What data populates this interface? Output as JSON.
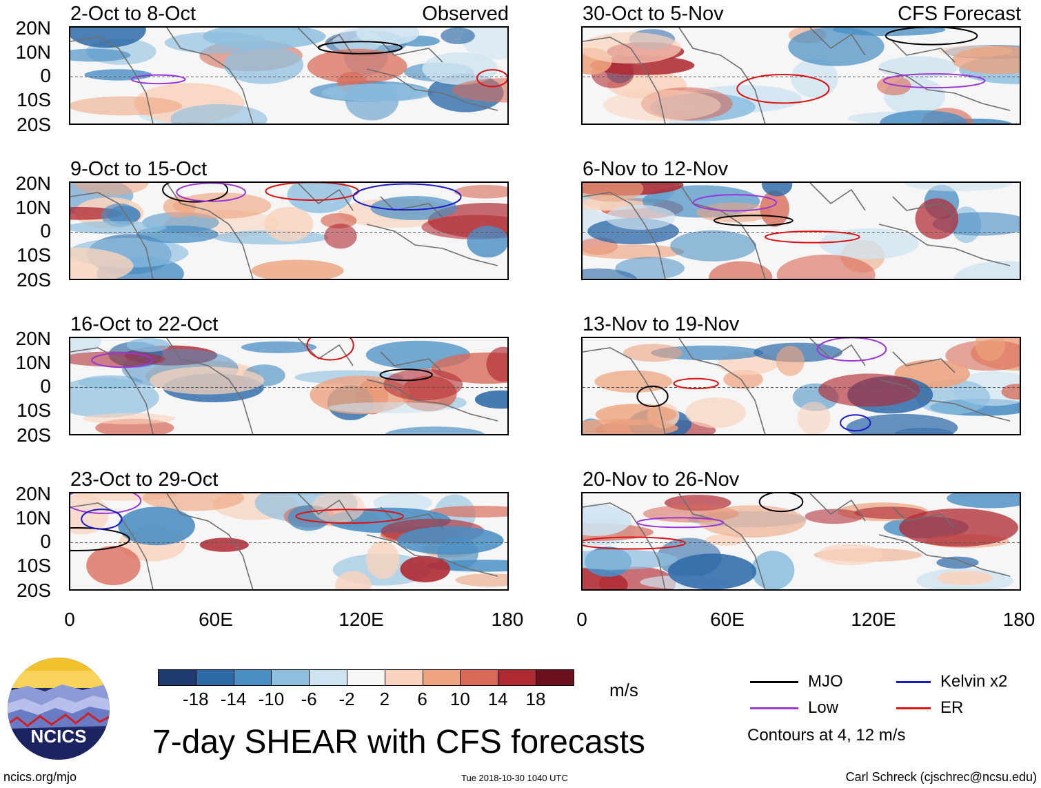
{
  "chart_data": {
    "type": "heatmap",
    "title": "7-day SHEAR with CFS forecasts",
    "units": "m/s",
    "ylim": [
      -20,
      20
    ],
    "xlim": [
      0,
      180
    ],
    "y_ticks": [
      "20N",
      "10N",
      "0",
      "10S",
      "20S"
    ],
    "x_ticks": [
      "0",
      "60E",
      "120E",
      "180"
    ],
    "colorbar": {
      "labels": [
        "-18",
        "-14",
        "-10",
        "-6",
        "-2",
        "2",
        "6",
        "10",
        "14",
        "18"
      ],
      "colors": [
        "#1f3a6e",
        "#2e6aa8",
        "#4a8fc4",
        "#8ebfdf",
        "#cfe4f1",
        "#f7f7f7",
        "#f9d3bd",
        "#eda47f",
        "#d86a57",
        "#b02a33",
        "#6b0f1d"
      ]
    },
    "panels": [
      {
        "period": "2-Oct to 8-Oct",
        "label": "Observed",
        "source": "observed"
      },
      {
        "period": "9-Oct to 15-Oct",
        "label": "",
        "source": "observed"
      },
      {
        "period": "16-Oct to 22-Oct",
        "label": "",
        "source": "observed"
      },
      {
        "period": "23-Oct to 29-Oct",
        "label": "",
        "source": "observed"
      },
      {
        "period": "30-Oct to 5-Nov",
        "label": "CFS Forecast",
        "source": "forecast"
      },
      {
        "period": "6-Nov to 12-Nov",
        "label": "",
        "source": "forecast"
      },
      {
        "period": "13-Nov to 19-Nov",
        "label": "",
        "source": "forecast"
      },
      {
        "period": "20-Nov to 26-Nov",
        "label": "",
        "source": "forecast"
      }
    ],
    "legend": [
      {
        "name": "MJO",
        "color": "#000000"
      },
      {
        "name": "Low",
        "color": "#9a35d8"
      },
      {
        "name": "Kelvin x2",
        "color": "#1a1acc"
      },
      {
        "name": "ER",
        "color": "#dd1111"
      }
    ],
    "contour_note": "Contours at 4, 12 m/s"
  },
  "logo": {
    "text": "NCICS"
  },
  "footer": {
    "url": "ncics.org/mjo",
    "timestamp": "Tue 2018-10-30 1040 UTC",
    "author": "Carl Schreck (cjschrec@ncsu.edu)"
  }
}
